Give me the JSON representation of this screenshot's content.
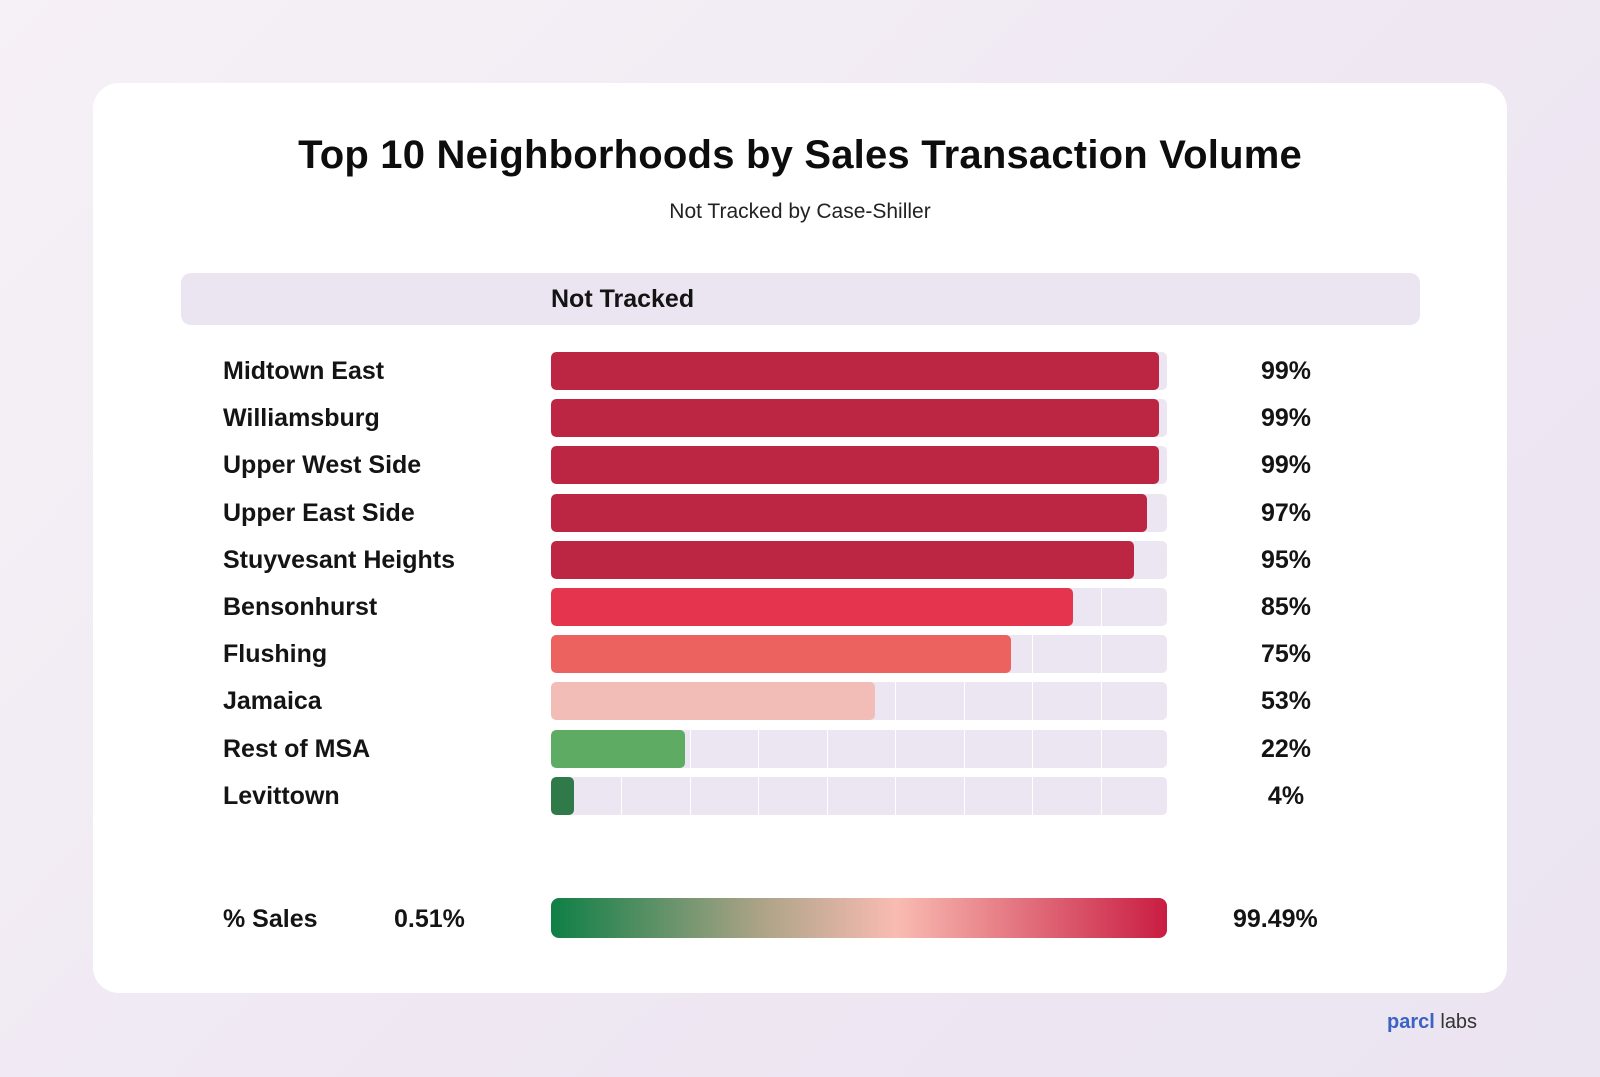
{
  "chart_data": {
    "type": "bar",
    "title": "Top 10 Neighborhoods by Sales Transaction Volume",
    "subtitle": "Not Tracked by Case-Shiller",
    "column_header": "Not Tracked",
    "categories": [
      "Midtown East",
      "Williamsburg",
      "Upper West Side",
      "Upper East Side",
      "Stuyvesant Heights",
      "Bensonhurst",
      "Flushing",
      "Jamaica",
      "Rest of MSA",
      "Levittown"
    ],
    "values": [
      99,
      99,
      99,
      97,
      95,
      85,
      75,
      53,
      22,
      4
    ],
    "value_labels": [
      "99%",
      "99%",
      "99%",
      "97%",
      "95%",
      "85%",
      "75%",
      "53%",
      "22%",
      "4%"
    ],
    "bar_colors": [
      "#bc2642",
      "#bc2642",
      "#bc2642",
      "#bc2642",
      "#bc2642",
      "#e5354e",
      "#eb625e",
      "#f3bdb7",
      "#5eab64",
      "#2f7a48"
    ],
    "ylim": [
      0,
      100
    ],
    "legend": {
      "label": "% Sales",
      "min_label": "0.51%",
      "max_label": "99.49%",
      "gradient_colors": [
        "#0e7f46",
        "#a8a285",
        "#f9bcb2",
        "#c91d42"
      ]
    }
  },
  "brand": {
    "mark": "parcl",
    "rest": " labs"
  }
}
